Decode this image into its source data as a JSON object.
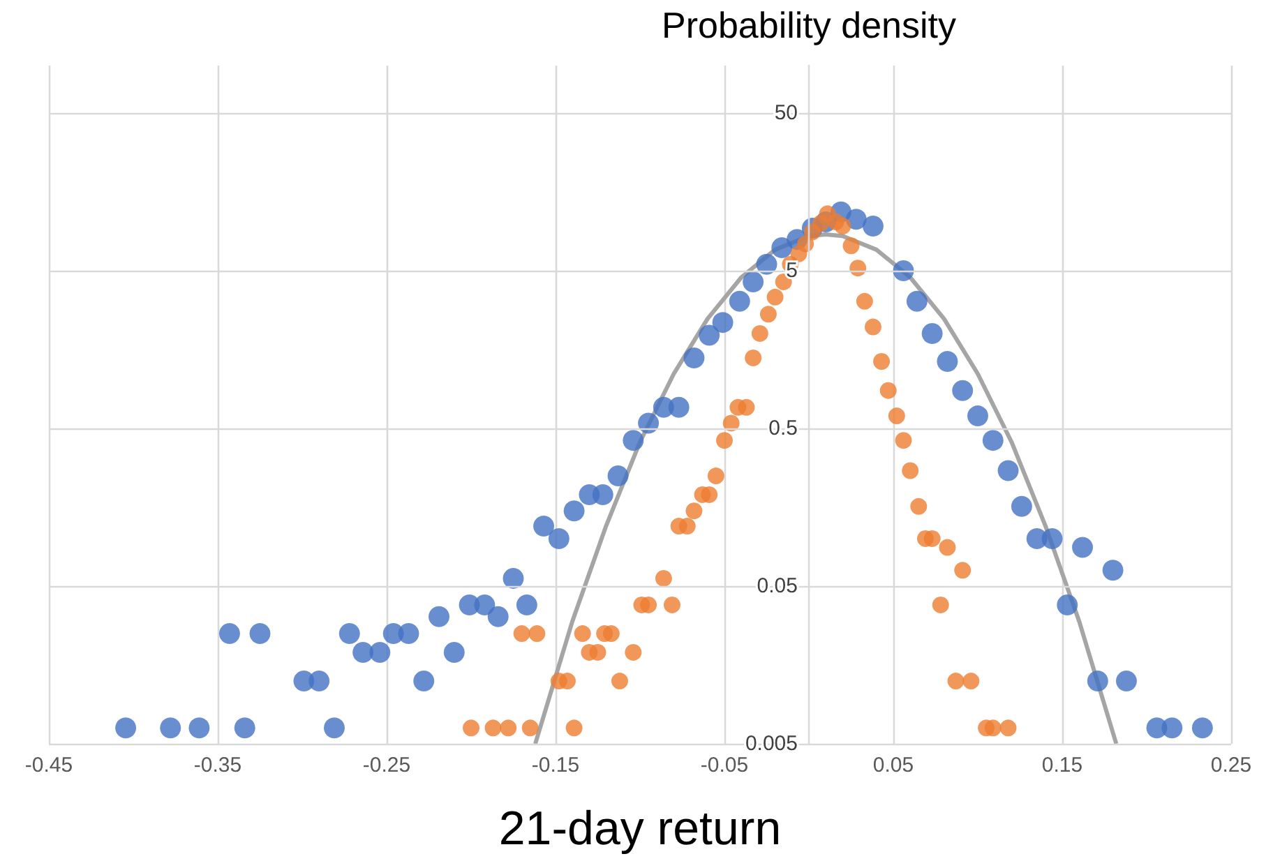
{
  "chart_data": {
    "type": "scatter",
    "xlabel": "21-day return",
    "ylabel": "Probability density",
    "xlim": [
      -0.45,
      0.25
    ],
    "xticks": [
      -0.45,
      -0.35,
      -0.25,
      -0.15,
      -0.05,
      0.05,
      0.15,
      0.25
    ],
    "ylim": [
      0.005,
      100
    ],
    "yticks": [
      0.005,
      0.05,
      0.5,
      5,
      50
    ],
    "log": "y",
    "grid": true,
    "marker": "circle",
    "series": [
      {
        "color": "#4472c4",
        "x": [
          -0.4045,
          -0.378,
          -0.361,
          -0.334,
          -0.281,
          -0.343,
          -0.325,
          -0.299,
          -0.29,
          -0.272,
          -0.264,
          -0.254,
          -0.246,
          -0.237,
          -0.228,
          -0.219,
          -0.21,
          -0.201,
          -0.192,
          -0.184,
          -0.175,
          -0.167,
          -0.157,
          -0.148,
          -0.139,
          -0.13,
          -0.122,
          -0.113,
          -0.104,
          -0.095,
          -0.086,
          -0.077,
          -0.068,
          -0.059,
          -0.051,
          -0.041,
          -0.033,
          -0.025,
          -0.016,
          -0.007,
          0.002,
          0.01,
          0.019,
          0.028,
          0.038,
          0.056,
          0.064,
          0.073,
          0.082,
          0.091,
          0.1,
          0.109,
          0.118,
          0.126,
          0.135,
          0.144,
          0.153,
          0.162,
          0.171,
          0.18,
          0.188,
          0.206,
          0.215,
          0.233
        ],
        "values": [
          0.0063,
          0.0063,
          0.0063,
          0.0063,
          0.0063,
          0.025,
          0.025,
          0.0125,
          0.0125,
          0.025,
          0.019,
          0.019,
          0.025,
          0.025,
          0.0125,
          0.032,
          0.019,
          0.038,
          0.038,
          0.032,
          0.056,
          0.038,
          0.12,
          0.1,
          0.15,
          0.19,
          0.19,
          0.25,
          0.42,
          0.54,
          0.68,
          0.68,
          1.4,
          1.95,
          2.35,
          3.2,
          4.25,
          5.5,
          7,
          7.9,
          9.3,
          10.2,
          11.8,
          10.6,
          9.6,
          5,
          3.2,
          2,
          1.33,
          0.87,
          0.6,
          0.42,
          0.27,
          0.16,
          0.1,
          0.1,
          0.038,
          0.088,
          0.0125,
          0.063,
          0.0125,
          0.0063,
          0.0063,
          0.0063
        ]
      },
      {
        "color": "#ed7d31",
        "x": [
          -0.2,
          -0.187,
          -0.178,
          -0.165,
          -0.139,
          -0.17,
          -0.161,
          -0.148,
          -0.143,
          -0.134,
          -0.13,
          -0.125,
          -0.121,
          -0.117,
          -0.112,
          -0.104,
          -0.099,
          -0.095,
          -0.086,
          -0.081,
          -0.077,
          -0.072,
          -0.068,
          -0.063,
          -0.059,
          -0.055,
          -0.05,
          -0.046,
          -0.042,
          -0.037,
          -0.033,
          -0.029,
          -0.024,
          -0.02,
          -0.015,
          -0.011,
          -0.006,
          -0.002,
          0.002,
          0.007,
          0.011,
          0.016,
          0.02,
          0.025,
          0.029,
          0.033,
          0.038,
          0.043,
          0.047,
          0.052,
          0.056,
          0.06,
          0.065,
          0.069,
          0.073,
          0.078,
          0.082,
          0.087,
          0.091,
          0.096,
          0.105,
          0.109,
          0.118
        ],
        "values": [
          0.0063,
          0.0063,
          0.0063,
          0.0063,
          0.0063,
          0.025,
          0.025,
          0.0125,
          0.0125,
          0.025,
          0.019,
          0.019,
          0.025,
          0.025,
          0.0125,
          0.019,
          0.038,
          0.038,
          0.056,
          0.038,
          0.12,
          0.12,
          0.15,
          0.19,
          0.19,
          0.25,
          0.42,
          0.54,
          0.68,
          0.68,
          1.4,
          2,
          2.65,
          3.4,
          4.25,
          5.5,
          6.4,
          7.4,
          8.8,
          10,
          11.5,
          10.2,
          9.6,
          7.2,
          5.2,
          3.2,
          2.2,
          1.33,
          0.87,
          0.6,
          0.42,
          0.27,
          0.16,
          0.1,
          0.1,
          0.038,
          0.088,
          0.0125,
          0.063,
          0.0125,
          0.0063,
          0.0063,
          0.0063
        ]
      },
      {
        "type": "line",
        "marker": "none",
        "color": "#a5a5a5",
        "x": [
          -0.162,
          -0.14,
          -0.12,
          -0.1,
          -0.08,
          -0.06,
          -0.04,
          -0.02,
          0,
          0.01,
          0.02,
          0.04,
          0.06,
          0.08,
          0.1,
          0.12,
          0.14,
          0.16,
          0.182
        ],
        "values": [
          0.005,
          0.03,
          0.121,
          0.41,
          1.11,
          2.48,
          4.54,
          6.8,
          8.3,
          8.5,
          8.3,
          6.8,
          4.54,
          2.48,
          1.11,
          0.41,
          0.121,
          0.03,
          0.005
        ]
      }
    ]
  }
}
